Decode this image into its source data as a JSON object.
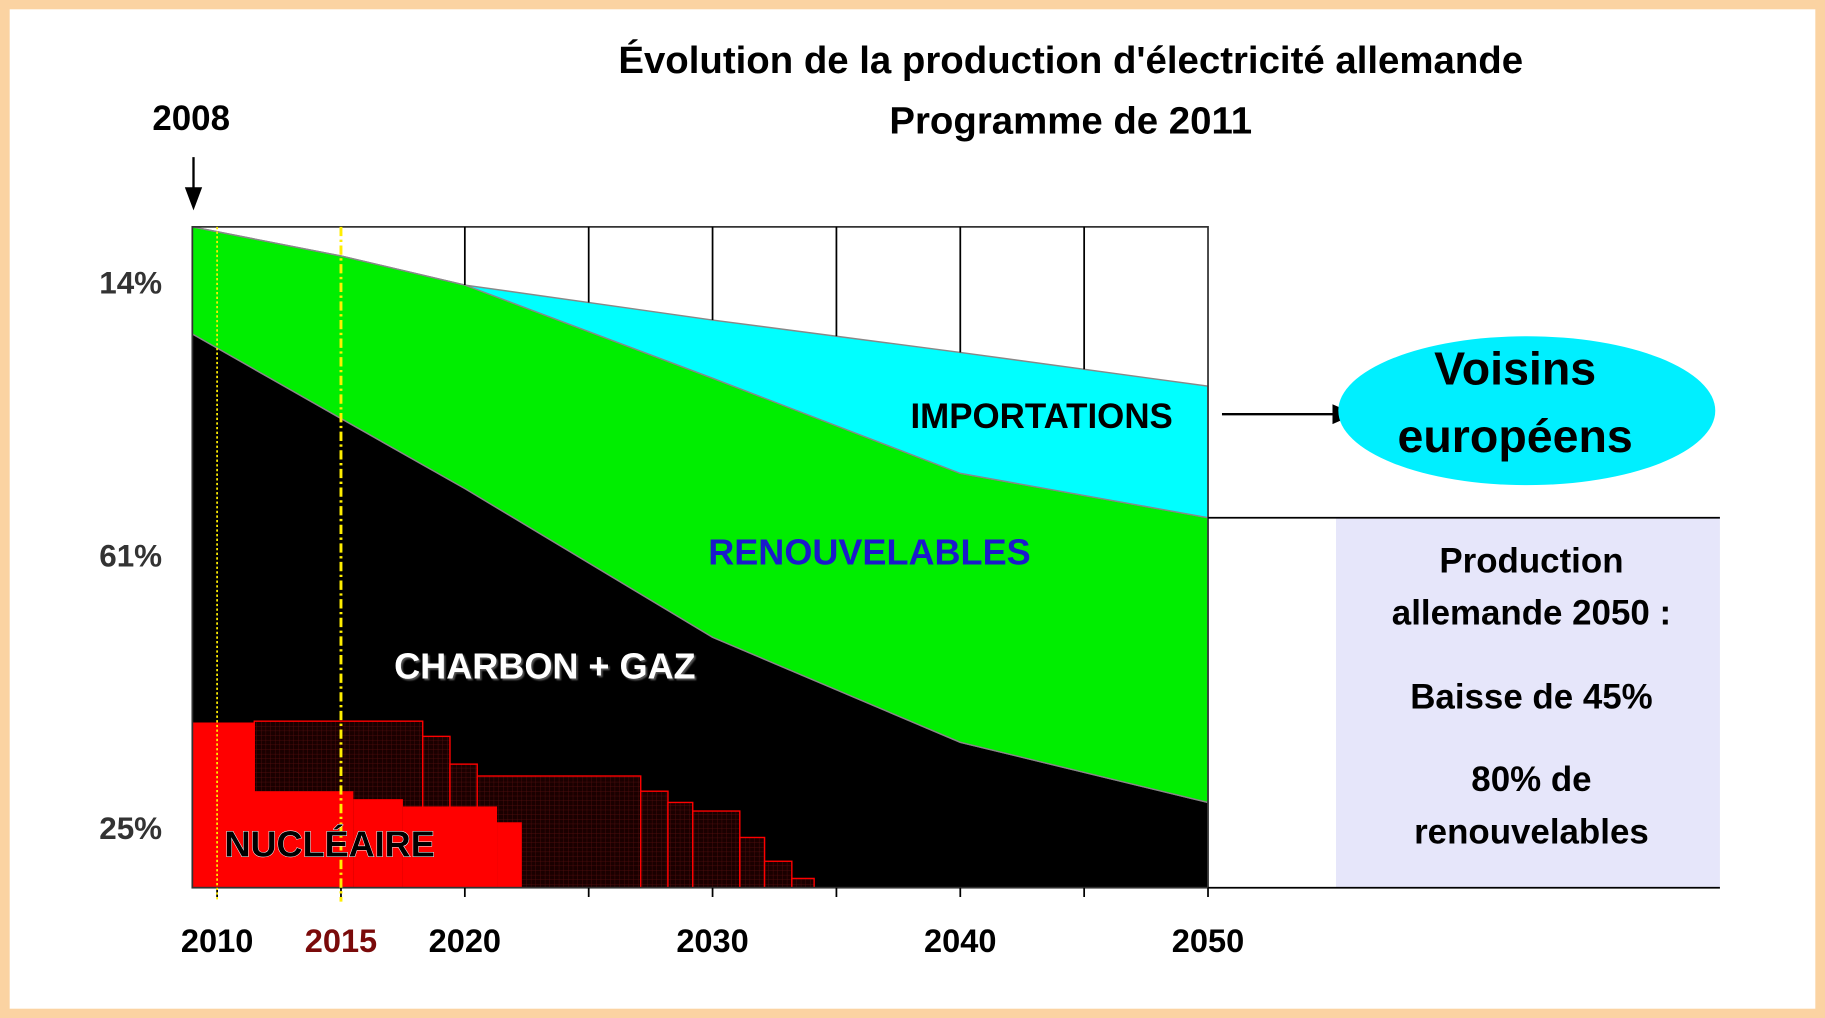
{
  "chart_data": {
    "type": "area",
    "title": "Évolution de la production d'électricité allemande",
    "subtitle": "Programme de 2011",
    "start_label": "2008",
    "x": [
      2009,
      2015,
      2020,
      2030,
      2040,
      2050
    ],
    "xlim": [
      2009,
      2050
    ],
    "ylim": [
      0,
      100
    ],
    "xticks": [
      2010,
      2015,
      2020,
      2030,
      2040,
      2050
    ],
    "xtick_colors": [
      "#000000",
      "#7a0a0a",
      "#000000",
      "#000000",
      "#000000",
      "#000000"
    ],
    "minor_xticks": [
      2025,
      2035,
      2045
    ],
    "vlines": [
      2010,
      2015
    ],
    "vline_color": "#ffee00",
    "series": [
      {
        "name": "CHARBON + GAZ",
        "color": "#000000",
        "share_label": "61%",
        "values": [
          83.8,
          71,
          60.4,
          37.9,
          22,
          12.9
        ]
      },
      {
        "name": "RENOUVELABLES",
        "color": "#00ee00",
        "share_label": "14%",
        "values": [
          16.2,
          24.6,
          30.8,
          39.2,
          40.7,
          43.1
        ]
      },
      {
        "name": "IMPORTATIONS",
        "color": "#00ffff",
        "values": [
          0,
          0,
          0,
          8.8,
          18.3,
          19.9
        ]
      }
    ],
    "steps": [
      {
        "color": "#2a0505",
        "x": [
          2011.5,
          2018.3,
          2019.4,
          2020.5,
          2027.1,
          2028.2,
          2029.2,
          2031.1,
          2032.1,
          2033.2,
          2034.1
        ],
        "values": [
          25.2,
          22.9,
          18.7,
          16.9,
          14.6,
          12.9,
          11.6,
          7.6,
          4,
          1.4,
          0
        ]
      },
      {
        "name": "NUCLÉAIRE",
        "color": "#ff0000",
        "share_label": "25%",
        "x": [
          2009,
          2011.5,
          2015.5,
          2017.5,
          2021.3,
          2022.3
        ],
        "values": [
          25,
          14.6,
          13.4,
          12.3,
          9.9,
          0
        ]
      }
    ],
    "ellipse_text": [
      "Voisins",
      "européens"
    ],
    "ellipse_color": "#00efff",
    "box_text": [
      "Production",
      "allemande 2050 :",
      "Baisse de 45%",
      "80% de",
      "renouvelables"
    ],
    "box_color": "#e6e6fa"
  }
}
